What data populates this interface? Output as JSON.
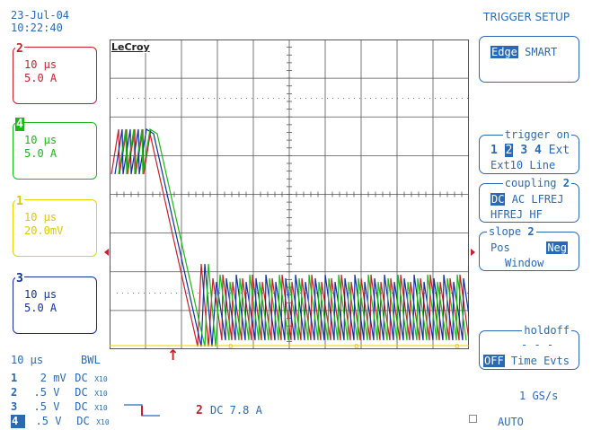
{
  "header": {
    "date": "23-Jul-04",
    "time": "10:22:40",
    "menu_title": "TRIGGER SETUP"
  },
  "channels": [
    {
      "num": "2",
      "timebase": "10 µs",
      "scale": "5.0 A",
      "color": "#c8202a"
    },
    {
      "num": "4",
      "timebase": "10 µs",
      "scale": "5.0 A",
      "color": "#18b818"
    },
    {
      "num": "1",
      "timebase": "10 µs",
      "scale": "20.0mV",
      "color": "#e8d200"
    },
    {
      "num": "3",
      "timebase": "10 µs",
      "scale": "5.0 A",
      "color": "#1030a0"
    }
  ],
  "brand": "LeCroy",
  "menu": {
    "type": {
      "opt1": "Edge",
      "opt2": "SMART"
    },
    "trigger_on": {
      "title": "trigger on",
      "items": [
        "1",
        "2",
        "3",
        "4",
        "Ext"
      ],
      "row2": "Ext10 Line",
      "selected": "2"
    },
    "coupling": {
      "title": "coupling",
      "ch": "2",
      "row1": [
        "DC",
        "AC",
        "LFREJ"
      ],
      "row2": "HFREJ HF",
      "selected": "DC"
    },
    "slope": {
      "title": "slope",
      "ch": "2",
      "pos": "Pos",
      "neg": "Neg",
      "row2": "Window",
      "selected": "Neg"
    },
    "holdoff": {
      "title": "holdoff",
      "dashes": "- - -",
      "opts": [
        "OFF",
        "Time",
        "Evts"
      ],
      "selected": "OFF"
    }
  },
  "bottom": {
    "timebase": "10 µs",
    "bwl": "BWL",
    "rows": [
      {
        "ch": "1",
        "val": "2",
        "unit": "mV",
        "coup": "DC",
        "probe": "X10"
      },
      {
        "ch": "2",
        "val": ".5",
        "unit": "V",
        "coup": "DC",
        "probe": "X10"
      },
      {
        "ch": "3",
        "val": ".5",
        "unit": "V",
        "coup": "DC",
        "probe": "X10"
      },
      {
        "ch": "4",
        "val": ".5",
        "unit": "V",
        "coup": "DC",
        "probe": "X10"
      }
    ],
    "trig_ch": "2",
    "trig_info": "DC 7.8 A",
    "sample_rate": "1 GS/s",
    "mode": "AUTO"
  }
}
